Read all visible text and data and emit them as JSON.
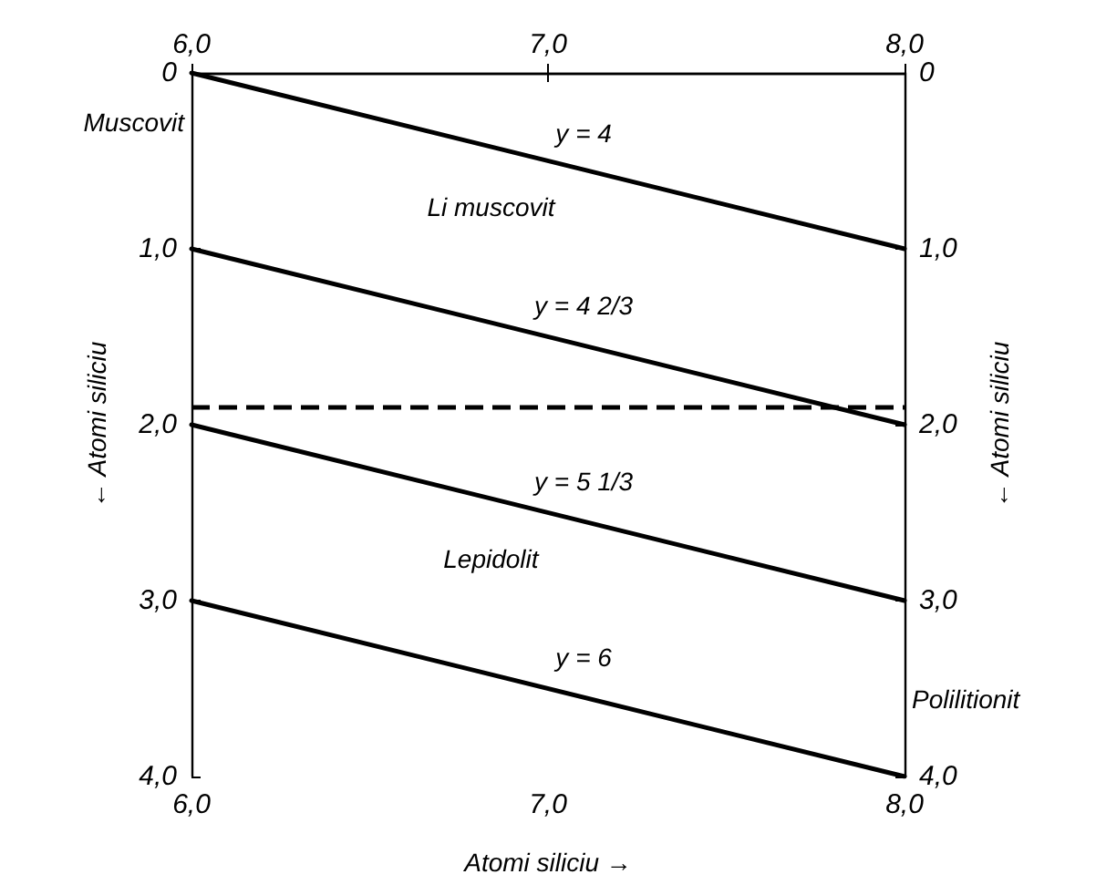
{
  "chart_data": {
    "type": "line",
    "xlabel": "Atomi siliciu →",
    "ylabel": "← Atomi siliciu",
    "y2label": "← Atomi siliciu",
    "x": [
      6.0,
      8.0
    ],
    "series": [
      {
        "color": "#000000",
        "values": [
          0.0,
          1.0
        ]
      },
      {
        "color": "#000000",
        "values": [
          1.0,
          2.0
        ]
      },
      {
        "color": "#000000",
        "values": [
          2.0,
          3.0
        ]
      },
      {
        "color": "#000000",
        "values": [
          3.0,
          4.0
        ]
      }
    ],
    "xlim": [
      6.0,
      8.0
    ],
    "xticks": [
      {
        "value": 6,
        "label": "6,0"
      },
      {
        "value": 7,
        "label": "7,0"
      },
      {
        "value": 8,
        "label": "8,0"
      }
    ],
    "x2lim": [
      6.0,
      8.0
    ],
    "x2ticks": [
      {
        "value": 6,
        "label": "6,0"
      },
      {
        "value": 7,
        "label": "7,0"
      },
      {
        "value": 8,
        "label": "8,0"
      }
    ],
    "ylim": [
      4.0,
      0.0
    ],
    "yticks": [
      {
        "value": 0,
        "label": "0"
      },
      {
        "value": 1,
        "label": "1,0"
      },
      {
        "value": 2,
        "label": "2,0"
      },
      {
        "value": 3,
        "label": "3,0"
      },
      {
        "value": 4,
        "label": "4,0"
      }
    ],
    "y2lim": [
      4.0,
      0.0
    ],
    "y2ticks": [
      {
        "value": 0,
        "label": "0"
      },
      {
        "value": 1,
        "label": "1,0"
      },
      {
        "value": 2,
        "label": "2,0"
      },
      {
        "value": 3,
        "label": "3,0"
      },
      {
        "value": 4,
        "label": "4,0"
      }
    ],
    "ref_lines": [
      {
        "axis": "y",
        "value": 1.9,
        "color": "#000000",
        "line_style": "dashed"
      }
    ],
    "annotations": [
      "y = 4",
      "y = 4 2/3",
      "y = 5 1/3",
      "y = 6",
      "Li muscovit",
      "Lepidolit",
      "Muscovit",
      "Polilitionit"
    ],
    "grid": false,
    "legend": false,
    "marker": "none",
    "line_style": "solid"
  }
}
